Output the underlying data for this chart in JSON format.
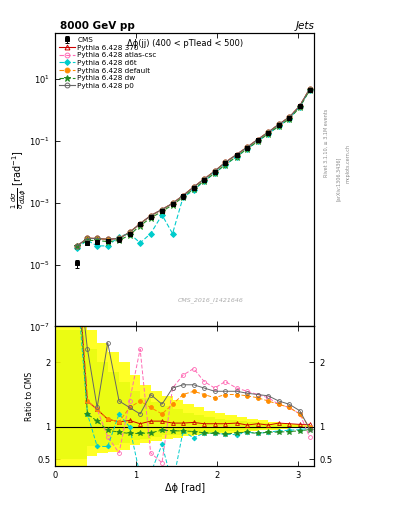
{
  "title_top": "8000 GeV pp",
  "title_right": "Jets",
  "annotation": "Δϕ(jj) (400 < pTlead < 500)",
  "watermark": "CMS_2016_I1421646",
  "ylabel_main": "$\\frac{1}{\\sigma}\\frac{d\\sigma}{d\\Delta\\phi}$ [rad$^{-1}$]",
  "ylabel_ratio": "Ratio to CMS",
  "xlabel": "Δϕ [rad]",
  "rivet_label": "Rivet 3.1.10, ≥ 3.1M events",
  "arxiv_label": "[arXiv:1306.3436]",
  "mcplots_label": "mcplots.cern.ch",
  "cms_data_x": [
    0.27,
    0.4,
    0.52,
    0.65,
    0.79,
    0.92,
    1.05,
    1.18,
    1.32,
    1.45,
    1.58,
    1.71,
    1.84,
    1.97,
    2.1,
    2.24,
    2.37,
    2.5,
    2.63,
    2.76,
    2.89,
    3.02,
    3.14
  ],
  "cms_data_y": [
    1.1e-05,
    5e-05,
    5.5e-05,
    5.8e-05,
    6.5e-05,
    0.0001,
    0.0002,
    0.00035,
    0.00055,
    0.0009,
    0.0016,
    0.003,
    0.0055,
    0.01,
    0.019,
    0.034,
    0.06,
    0.105,
    0.185,
    0.32,
    0.55,
    1.3,
    4.5
  ],
  "cms_yerr": [
    3e-06,
    8e-06,
    8e-06,
    8e-06,
    1e-05,
    1.5e-05,
    3e-05,
    5e-05,
    8e-05,
    0.00014,
    0.00025,
    0.00045,
    0.0008,
    0.0015,
    0.0028,
    0.005,
    0.009,
    0.015,
    0.025,
    0.045,
    0.08,
    0.18,
    0.5
  ],
  "cms_color": "#000000",
  "py370_x": [
    0.27,
    0.4,
    0.52,
    0.65,
    0.79,
    0.92,
    1.05,
    1.18,
    1.32,
    1.45,
    1.58,
    1.71,
    1.84,
    1.97,
    2.1,
    2.24,
    2.37,
    2.5,
    2.63,
    2.76,
    2.89,
    3.02,
    3.14
  ],
  "py370_y": [
    4e-05,
    7e-05,
    7e-05,
    6.5e-05,
    7e-05,
    0.00011,
    0.00021,
    0.00038,
    0.0006,
    0.00095,
    0.0017,
    0.0032,
    0.0058,
    0.0105,
    0.02,
    0.036,
    0.062,
    0.11,
    0.19,
    0.34,
    0.58,
    1.35,
    4.7
  ],
  "py370_color": "#cc0000",
  "py370_ratio": [
    3.6,
    1.4,
    1.27,
    1.12,
    1.08,
    1.1,
    1.05,
    1.09,
    1.09,
    1.06,
    1.06,
    1.07,
    1.05,
    1.05,
    1.05,
    1.06,
    1.03,
    1.05,
    1.03,
    1.06,
    1.05,
    1.04,
    1.04
  ],
  "pyatlas_x": [
    0.27,
    0.4,
    0.52,
    0.65,
    0.79,
    0.92,
    1.05,
    1.18,
    1.32,
    1.45,
    1.58,
    1.71,
    1.84,
    1.97,
    2.1,
    2.24,
    2.37,
    2.5,
    2.63,
    2.76,
    2.89,
    3.02,
    3.14
  ],
  "pyatlas_y": [
    4e-05,
    7e-05,
    7e-05,
    6.5e-05,
    7e-05,
    0.00011,
    0.00021,
    0.00038,
    0.0006,
    0.00095,
    0.0017,
    0.0032,
    0.0058,
    0.0105,
    0.02,
    0.036,
    0.062,
    0.11,
    0.19,
    0.34,
    0.58,
    1.35,
    4.7
  ],
  "pyatlas_color": "#ff69b4",
  "pyatlas_ratio": [
    3.6,
    1.4,
    1.27,
    0.85,
    0.6,
    1.4,
    2.2,
    0.6,
    0.45,
    1.6,
    1.8,
    1.9,
    1.7,
    1.6,
    1.7,
    1.6,
    1.55,
    1.5,
    1.45,
    1.35,
    1.3,
    1.2,
    0.85
  ],
  "pyd6t_x": [
    0.27,
    0.4,
    0.52,
    0.65,
    0.79,
    0.92,
    1.05,
    1.18,
    1.32,
    1.45,
    1.58,
    1.71,
    1.84,
    1.97,
    2.1,
    2.24,
    2.37,
    2.5,
    2.63,
    2.76,
    2.89,
    3.02,
    3.14
  ],
  "pyd6t_y": [
    3.5e-05,
    6e-05,
    4e-05,
    4e-05,
    8e-05,
    0.0001,
    5e-05,
    0.0001,
    0.0004,
    0.0001,
    0.0015,
    0.0025,
    0.005,
    0.009,
    0.017,
    0.03,
    0.055,
    0.095,
    0.17,
    0.3,
    0.52,
    1.25,
    4.4
  ],
  "pyd6t_color": "#00cccc",
  "pyd6t_ratio": [
    3.2,
    1.2,
    0.7,
    0.7,
    1.2,
    1.0,
    0.25,
    0.29,
    0.73,
    0.11,
    0.94,
    0.83,
    0.91,
    0.9,
    0.89,
    0.88,
    0.92,
    0.9,
    0.92,
    0.94,
    0.95,
    0.96,
    0.98
  ],
  "pydefault_x": [
    0.27,
    0.4,
    0.52,
    0.65,
    0.79,
    0.92,
    1.05,
    1.18,
    1.32,
    1.45,
    1.58,
    1.71,
    1.84,
    1.97,
    2.1,
    2.24,
    2.37,
    2.5,
    2.63,
    2.76,
    2.89,
    3.02,
    3.14
  ],
  "pydefault_y": [
    4e-05,
    7e-05,
    7e-05,
    6.5e-05,
    7e-05,
    0.00011,
    0.00021,
    0.00038,
    0.0006,
    0.00095,
    0.0017,
    0.0032,
    0.0058,
    0.0105,
    0.02,
    0.036,
    0.062,
    0.11,
    0.19,
    0.34,
    0.58,
    1.35,
    4.7
  ],
  "pydefault_color": "#ff8c00",
  "pydefault_ratio": [
    3.6,
    1.4,
    1.27,
    1.12,
    1.08,
    1.3,
    1.4,
    1.3,
    1.2,
    1.35,
    1.5,
    1.55,
    1.5,
    1.45,
    1.5,
    1.5,
    1.48,
    1.45,
    1.4,
    1.35,
    1.3,
    1.2,
    1.0
  ],
  "pydw_x": [
    0.27,
    0.4,
    0.52,
    0.65,
    0.79,
    0.92,
    1.05,
    1.18,
    1.32,
    1.45,
    1.58,
    1.71,
    1.84,
    1.97,
    2.1,
    2.24,
    2.37,
    2.5,
    2.63,
    2.76,
    2.89,
    3.02,
    3.14
  ],
  "pydw_y": [
    4e-05,
    6e-05,
    6e-05,
    5.5e-05,
    6e-05,
    9e-05,
    0.00018,
    0.00032,
    0.00052,
    0.00085,
    0.0015,
    0.0028,
    0.005,
    0.009,
    0.017,
    0.031,
    0.055,
    0.095,
    0.17,
    0.295,
    0.51,
    1.22,
    4.3
  ],
  "pydw_color": "#228b22",
  "pydw_ratio": [
    3.6,
    1.2,
    1.09,
    0.95,
    0.92,
    0.9,
    0.9,
    0.91,
    0.95,
    0.94,
    0.94,
    0.93,
    0.91,
    0.9,
    0.89,
    0.91,
    0.92,
    0.9,
    0.92,
    0.92,
    0.93,
    0.94,
    0.96
  ],
  "pyp0_x": [
    0.27,
    0.4,
    0.52,
    0.65,
    0.79,
    0.92,
    1.05,
    1.18,
    1.32,
    1.45,
    1.58,
    1.71,
    1.84,
    1.97,
    2.1,
    2.24,
    2.37,
    2.5,
    2.63,
    2.76,
    2.89,
    3.02,
    3.14
  ],
  "pyp0_y": [
    4e-05,
    7e-05,
    7e-05,
    6.5e-05,
    7e-05,
    0.00011,
    0.00021,
    0.00038,
    0.0006,
    0.00095,
    0.0017,
    0.0032,
    0.0058,
    0.0105,
    0.02,
    0.036,
    0.062,
    0.11,
    0.19,
    0.34,
    0.58,
    1.35,
    4.7
  ],
  "pyp0_color": "#666666",
  "pyp0_ratio": [
    3.6,
    2.2,
    1.3,
    2.3,
    1.4,
    1.3,
    1.2,
    1.5,
    1.35,
    1.6,
    1.65,
    1.65,
    1.6,
    1.55,
    1.55,
    1.55,
    1.52,
    1.5,
    1.48,
    1.4,
    1.35,
    1.25,
    0.97
  ],
  "ylim_main": [
    1e-07,
    300.0
  ],
  "ylim_ratio": [
    0.4,
    2.55
  ],
  "xlim": [
    0.0,
    3.2
  ],
  "green_band_edges": [
    0.0,
    0.13,
    0.27,
    0.4,
    0.52,
    0.65,
    0.79,
    0.92,
    1.05,
    1.18,
    1.32,
    1.45,
    1.58,
    1.71,
    1.84,
    1.97,
    2.1,
    2.24,
    2.37,
    2.5,
    2.63,
    2.76,
    2.89,
    3.02,
    3.14
  ],
  "green_band_lo": [
    0.5,
    0.5,
    0.5,
    0.7,
    0.7,
    0.72,
    0.75,
    0.8,
    0.82,
    0.85,
    0.87,
    0.88,
    0.9,
    0.91,
    0.92,
    0.93,
    0.94,
    0.95,
    0.96,
    0.97,
    0.97,
    0.98,
    0.98,
    0.99,
    0.99
  ],
  "green_band_hi": [
    2.5,
    2.5,
    2.5,
    2.2,
    2.0,
    1.85,
    1.7,
    1.55,
    1.45,
    1.38,
    1.32,
    1.28,
    1.22,
    1.18,
    1.15,
    1.13,
    1.11,
    1.09,
    1.07,
    1.06,
    1.05,
    1.04,
    1.03,
    1.02,
    1.01
  ],
  "yellow_band_edges": [
    0.0,
    0.13,
    0.27,
    0.4,
    0.52,
    0.65,
    0.79,
    0.92,
    1.05,
    1.18,
    1.32,
    1.45,
    1.58,
    1.71,
    1.84,
    1.97,
    2.1,
    2.24,
    2.37,
    2.5,
    2.63,
    2.76,
    2.89,
    3.02,
    3.14
  ],
  "yellow_band_lo": [
    0.35,
    0.35,
    0.35,
    0.55,
    0.6,
    0.62,
    0.65,
    0.72,
    0.75,
    0.78,
    0.81,
    0.83,
    0.86,
    0.87,
    0.89,
    0.9,
    0.91,
    0.93,
    0.94,
    0.95,
    0.96,
    0.97,
    0.98,
    0.99,
    0.99
  ],
  "yellow_band_hi": [
    2.8,
    2.8,
    2.8,
    2.5,
    2.3,
    2.15,
    2.0,
    1.8,
    1.65,
    1.55,
    1.48,
    1.42,
    1.35,
    1.3,
    1.25,
    1.22,
    1.19,
    1.16,
    1.12,
    1.1,
    1.08,
    1.06,
    1.04,
    1.03,
    1.02
  ]
}
